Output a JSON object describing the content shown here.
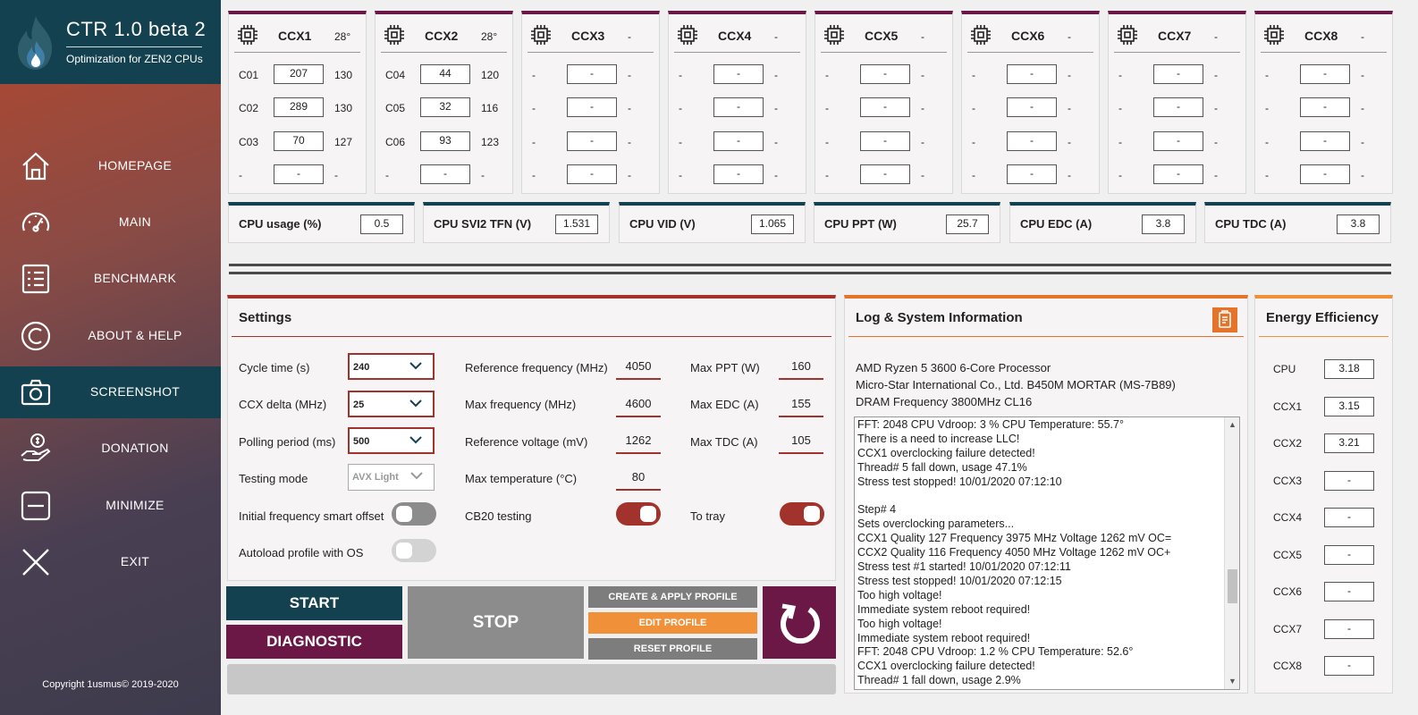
{
  "app": {
    "title": "CTR 1.0 beta 2",
    "subtitle": "Optimization for ZEN2 CPUs",
    "copyright": "Copyright 1usmus© 2019-2020"
  },
  "nav": [
    {
      "label": "HOMEPAGE",
      "icon": "home-icon"
    },
    {
      "label": "MAIN",
      "icon": "gauge-icon"
    },
    {
      "label": "BENCHMARK",
      "icon": "list-icon"
    },
    {
      "label": "ABOUT & HELP",
      "icon": "copyright-icon"
    },
    {
      "label": "SCREENSHOT",
      "icon": "camera-icon",
      "active": true
    },
    {
      "label": "DONATION",
      "icon": "donation-hand-icon"
    },
    {
      "label": "MINIMIZE",
      "icon": "minimize-icon"
    },
    {
      "label": "EXIT",
      "icon": "close-icon"
    }
  ],
  "ccx": [
    {
      "name": "CCX1",
      "temp": "28°",
      "cores": [
        {
          "id": "C01",
          "v": "207",
          "q": "130"
        },
        {
          "id": "C02",
          "v": "289",
          "q": "130"
        },
        {
          "id": "C03",
          "v": "70",
          "q": "127"
        },
        {
          "id": "-",
          "v": "-",
          "q": "-"
        }
      ]
    },
    {
      "name": "CCX2",
      "temp": "28°",
      "cores": [
        {
          "id": "C04",
          "v": "44",
          "q": "120"
        },
        {
          "id": "C05",
          "v": "32",
          "q": "116"
        },
        {
          "id": "C06",
          "v": "93",
          "q": "123"
        },
        {
          "id": "-",
          "v": "-",
          "q": "-"
        }
      ]
    },
    {
      "name": "CCX3",
      "temp": "-",
      "cores": [
        {
          "id": "-",
          "v": "-",
          "q": "-"
        },
        {
          "id": "-",
          "v": "-",
          "q": "-"
        },
        {
          "id": "-",
          "v": "-",
          "q": "-"
        },
        {
          "id": "-",
          "v": "-",
          "q": "-"
        }
      ]
    },
    {
      "name": "CCX4",
      "temp": "-",
      "cores": [
        {
          "id": "-",
          "v": "-",
          "q": "-"
        },
        {
          "id": "-",
          "v": "-",
          "q": "-"
        },
        {
          "id": "-",
          "v": "-",
          "q": "-"
        },
        {
          "id": "-",
          "v": "-",
          "q": "-"
        }
      ]
    },
    {
      "name": "CCX5",
      "temp": "-",
      "cores": [
        {
          "id": "-",
          "v": "-",
          "q": "-"
        },
        {
          "id": "-",
          "v": "-",
          "q": "-"
        },
        {
          "id": "-",
          "v": "-",
          "q": "-"
        },
        {
          "id": "-",
          "v": "-",
          "q": "-"
        }
      ]
    },
    {
      "name": "CCX6",
      "temp": "-",
      "cores": [
        {
          "id": "-",
          "v": "-",
          "q": "-"
        },
        {
          "id": "-",
          "v": "-",
          "q": "-"
        },
        {
          "id": "-",
          "v": "-",
          "q": "-"
        },
        {
          "id": "-",
          "v": "-",
          "q": "-"
        }
      ]
    },
    {
      "name": "CCX7",
      "temp": "-",
      "cores": [
        {
          "id": "-",
          "v": "-",
          "q": "-"
        },
        {
          "id": "-",
          "v": "-",
          "q": "-"
        },
        {
          "id": "-",
          "v": "-",
          "q": "-"
        },
        {
          "id": "-",
          "v": "-",
          "q": "-"
        }
      ]
    },
    {
      "name": "CCX8",
      "temp": "-",
      "cores": [
        {
          "id": "-",
          "v": "-",
          "q": "-"
        },
        {
          "id": "-",
          "v": "-",
          "q": "-"
        },
        {
          "id": "-",
          "v": "-",
          "q": "-"
        },
        {
          "id": "-",
          "v": "-",
          "q": "-"
        }
      ]
    }
  ],
  "metrics": [
    {
      "label": "CPU usage (%)",
      "value": "0.5"
    },
    {
      "label": "CPU SVI2 TFN (V)",
      "value": "1.531"
    },
    {
      "label": "CPU VID (V)",
      "value": "1.065"
    },
    {
      "label": "CPU PPT (W)",
      "value": "25.7"
    },
    {
      "label": "CPU EDC (A)",
      "value": "3.8"
    },
    {
      "label": "CPU TDC (A)",
      "value": "3.8"
    }
  ],
  "settings": {
    "title": "Settings",
    "cycle_time": {
      "label": "Cycle time (s)",
      "value": "240"
    },
    "ccx_delta": {
      "label": "CCX delta (MHz)",
      "value": "25"
    },
    "polling": {
      "label": "Polling period (ms)",
      "value": "500"
    },
    "testing_mode": {
      "label": "Testing mode",
      "value": "AVX Light"
    },
    "smart_offset": {
      "label": "Initial frequency smart offset",
      "on": false
    },
    "autoload": {
      "label": "Autoload profile with OS",
      "on": false
    },
    "ref_freq": {
      "label": "Reference frequency (MHz)",
      "value": "4050"
    },
    "max_freq": {
      "label": "Max frequency (MHz)",
      "value": "4600"
    },
    "ref_volt": {
      "label": "Reference voltage (mV)",
      "value": "1262"
    },
    "max_temp": {
      "label": "Max temperature (°C)",
      "value": "80"
    },
    "cb20": {
      "label": "CB20 testing",
      "on": true
    },
    "max_ppt": {
      "label": "Max PPT (W)",
      "value": "160"
    },
    "max_edc": {
      "label": "Max EDC (A)",
      "value": "155"
    },
    "max_tdc": {
      "label": "Max TDC (A)",
      "value": "105"
    },
    "tray": {
      "label": "To tray",
      "on": true
    }
  },
  "buttons": {
    "start": "START",
    "diagnostic": "DIAGNOSTIC",
    "stop": "STOP",
    "create": "CREATE & APPLY PROFILE",
    "edit": "EDIT PROFILE",
    "reset": "RESET PROFILE"
  },
  "log": {
    "title": "Log & System Information",
    "sysinfo": [
      "AMD Ryzen 5 3600 6-Core Processor",
      "Micro-Star International Co., Ltd. B450M MORTAR (MS-7B89)",
      "DRAM Frequency 3800MHz CL16"
    ],
    "lines": [
      "FFT: 2048  CPU Vdroop: 3 %  CPU Temperature: 55.7°",
      "There is a need to increase LLC!",
      "CCX1 overclocking failure detected!",
      "Thread# 5 fall down, usage 47.1%",
      "Stress test stopped!  10/01/2020 07:12:10",
      "",
      "Step# 4",
      "Sets overclocking parameters...",
      "CCX1  Quality 127  Frequency 3975 MHz  Voltage 1262 mV  OC=",
      "CCX2  Quality 116  Frequency 4050 MHz  Voltage 1262 mV  OC+",
      "Stress test #1 started!  10/01/2020 07:12:11",
      "Stress test stopped!  10/01/2020 07:12:15",
      "Too high voltage!",
      "Immediate system reboot required!",
      "Too high voltage!",
      "Immediate system reboot required!",
      "FFT: 2048  CPU Vdroop: 1.2 %  CPU Temperature: 52.6°",
      "CCX1 overclocking failure detected!",
      "Thread# 1 fall down, usage 2.9%"
    ]
  },
  "energy": {
    "title": "Energy Efficiency",
    "rows": [
      {
        "label": "CPU",
        "value": "3.18"
      },
      {
        "label": "CCX1",
        "value": "3.15"
      },
      {
        "label": "CCX2",
        "value": "3.21"
      },
      {
        "label": "CCX3",
        "value": "-"
      },
      {
        "label": "CCX4",
        "value": "-"
      },
      {
        "label": "CCX5",
        "value": "-"
      },
      {
        "label": "CCX6",
        "value": "-"
      },
      {
        "label": "CCX7",
        "value": "-"
      },
      {
        "label": "CCX8",
        "value": "-"
      }
    ]
  },
  "colors": {
    "teal": "#14414f",
    "maroon": "#6b1847",
    "red": "#a2322c",
    "orange": "#f0913a",
    "gray": "#8c8c8c"
  }
}
